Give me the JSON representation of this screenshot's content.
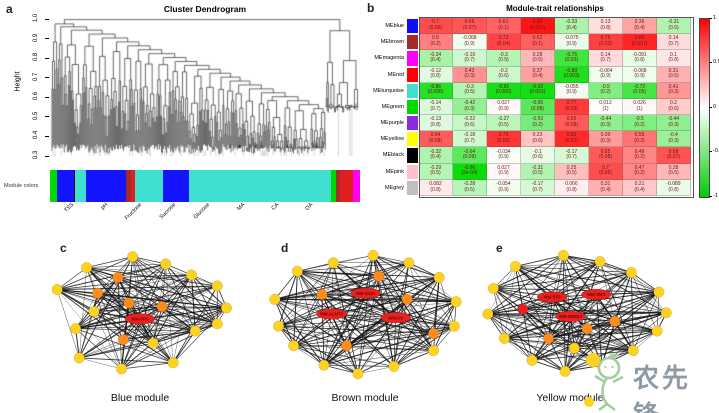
{
  "panels": {
    "a": "a",
    "b": "b",
    "c": "c",
    "d": "d",
    "e": "e"
  },
  "watermark": {
    "text": "农先锋"
  },
  "chart_data": [
    {
      "id": "cluster_dendrogram",
      "type": "dendrogram",
      "panel": "a",
      "title": "Cluster Dendrogram",
      "ylabel": "Height",
      "ylim": [
        0.3,
        1.0
      ],
      "yticks": [
        0.3,
        0.4,
        0.5,
        0.6,
        0.7,
        0.8,
        0.9,
        1.0
      ],
      "module_bar_label": "Module colors",
      "module_bar_segments": [
        {
          "color": "#00D900",
          "width": 2
        },
        {
          "color": "#1414FF",
          "width": 5
        },
        {
          "color": "#101010",
          "width": 0.5
        },
        {
          "color": "#3FE0D0",
          "width": 3
        },
        {
          "color": "#1414FF",
          "width": 12
        },
        {
          "color": "#A52A2A",
          "width": 1.5
        },
        {
          "color": "#E02020",
          "width": 1
        },
        {
          "color": "#3FE0D0",
          "width": 8.5
        },
        {
          "color": "#1414FF",
          "width": 7.5
        },
        {
          "color": "#3FE0D0",
          "width": 42
        },
        {
          "color": "#00D900",
          "width": 1.3
        },
        {
          "color": "#A52A2A",
          "width": 1.2
        },
        {
          "color": "#E02020",
          "width": 4
        },
        {
          "color": "#FF00FF",
          "width": 2
        }
      ]
    },
    {
      "id": "module_trait_heatmap",
      "type": "heatmap",
      "panel": "b",
      "title": "Module-trait relationships",
      "columns": [
        "TSS",
        "pH",
        "Fructose",
        "Sucrose",
        "Glucose",
        "MA",
        "CA",
        "OA"
      ],
      "rows": [
        {
          "module": "MEblue",
          "swatch": "#0D0DFF",
          "values": [
            "0.7",
            "0.66",
            "0.61",
            "0.92",
            "-0.33",
            "0.13",
            "0.36",
            "-0.31"
          ],
          "p_values": [
            "(0.06)",
            "(0.07)",
            "(0.1)",
            "(0.001)",
            "(0.4)",
            "(0.8)",
            "(0.4)",
            "(0.5)"
          ]
        },
        {
          "module": "MEbrown",
          "swatch": "#A52A2A",
          "values": [
            "0.5",
            "-0.068",
            "0.73",
            "0.62",
            "-0.075",
            "0.75",
            "0.85",
            "0.14"
          ],
          "p_values": [
            "(0.2)",
            "(0.9)",
            "(0.04)",
            "(0.1)",
            "(0.9)",
            "(0.03)",
            "(0.007)",
            "(0.7)"
          ]
        },
        {
          "module": "MEmagenta",
          "swatch": "#FF00FF",
          "values": [
            "-0.34",
            "-0.19",
            "-0.3",
            "0.28",
            "-0.75",
            "0.14",
            "-0.091",
            "0.1"
          ],
          "p_values": [
            "(0.4)",
            "(0.7)",
            "(0.5)",
            "(0.5)",
            "(0.03)",
            "(0.7)",
            "(0.8)",
            "(0.8)"
          ]
        },
        {
          "module": "MEred",
          "swatch": "#FF0000",
          "values": [
            "-0.12",
            "0.43",
            "-0.2",
            "0.37",
            "-0.89",
            "-0.064",
            "-0.068",
            "0.31"
          ],
          "p_values": [
            "(0.8)",
            "(0.3)",
            "(0.6)",
            "(0.4)",
            "(0.003)",
            "(0.9)",
            "(0.9)",
            "(0.5)"
          ]
        },
        {
          "module": "MEturquoise",
          "swatch": "#3FE0D0",
          "values": [
            "-0.86",
            "-0.3",
            "-0.91",
            "-0.92",
            "-0.055",
            "-0.5",
            "-0.72",
            "0.41"
          ],
          "p_values": [
            "(0.006)",
            "(0.5)",
            "(0.002)",
            "(0.001)",
            "(0.9)",
            "(0.2)",
            "(0.05)",
            "(0.3)"
          ]
        },
        {
          "module": "MEgreen",
          "swatch": "#00D900",
          "values": [
            "-0.14",
            "-0.42",
            "0.027",
            "-0.65",
            "0.77",
            "0.012",
            "0.026",
            "0.2"
          ],
          "p_values": [
            "(0.7)",
            "(0.3)",
            "(0.9)",
            "(0.08)",
            "(0.03)",
            "(1)",
            "(1)",
            "(0.6)"
          ]
        },
        {
          "module": "MEpurple",
          "swatch": "#8A2BE2",
          "values": [
            "-0.13",
            "-0.22",
            "-0.27",
            "-0.53",
            "0.65",
            "-0.44",
            "-0.5",
            "-0.44"
          ],
          "p_values": [
            "(0.8)",
            "(0.6)",
            "(0.5)",
            "(0.2)",
            "(0.08)",
            "(0.3)",
            "(0.2)",
            "(0.3)"
          ]
        },
        {
          "module": "MEyellow",
          "swatch": "#FFFF00",
          "values": [
            "0.64",
            "-0.18",
            "0.79",
            "0.23",
            "0.83",
            "0.39",
            "0.55",
            "-0.4"
          ],
          "p_values": [
            "(0.08)",
            "(0.7)",
            "(0.02)",
            "(0.6)",
            "(0.01)",
            "(0.3)",
            "(0.2)",
            "(0.3)"
          ]
        },
        {
          "module": "MEblack",
          "swatch": "#000000",
          "values": [
            "-0.32",
            "-0.64",
            "-0.034",
            "-0.1",
            "-0.17",
            "0.65",
            "0.48",
            "0.68"
          ],
          "p_values": [
            "(0.4)",
            "(0.09)",
            "(0.9)",
            "(0.6)",
            "(0.7)",
            "(0.08)",
            "(0.2)",
            "(0.07)"
          ]
        },
        {
          "module": "MEpink",
          "swatch": "#FFC0CB",
          "values": [
            "-0.29",
            "-0.96",
            "0.027",
            "-0.31",
            "0.25",
            "0.7",
            "0.47",
            "0.28"
          ],
          "p_values": [
            "(0.5)",
            "(2e-04)",
            "(0.9)",
            "(0.5)",
            "(0.5)",
            "(0.05)",
            "(0.2)",
            "(0.5)"
          ]
        },
        {
          "module": "MEgrey",
          "swatch": "#BFBFBF",
          "values": [
            "0.082",
            "-0.28",
            "-0.054",
            "-0.17",
            "0.066",
            "0.31",
            "0.21",
            "-0.089"
          ],
          "p_values": [
            "(0.8)",
            "(0.5)",
            "(0.9)",
            "(0.7)",
            "(0.8)",
            "(0.4)",
            "(0.4)",
            "(0.8)"
          ]
        }
      ],
      "colorbar": {
        "tick_labels": [
          "1",
          "0.5",
          "0",
          "-0.5",
          "-1"
        ],
        "positive_color": "#FF0000",
        "zero_color": "#FFFFFF",
        "negative_color": "#00CC00"
      }
    },
    {
      "id": "blue_module_network",
      "type": "network",
      "panel": "c",
      "caption": "Blue module",
      "node_colors": {
        "yellow": "#FFD21F",
        "orange": "#FF8C1A",
        "red": "#E8231F"
      },
      "nodes": [
        {
          "x": 0.46,
          "y": 0.03,
          "kind": "yellow"
        },
        {
          "x": 0.64,
          "y": 0.09,
          "kind": "yellow"
        },
        {
          "x": 0.21,
          "y": 0.12,
          "kind": "yellow"
        },
        {
          "x": 0.78,
          "y": 0.18,
          "kind": "yellow"
        },
        {
          "x": 0.92,
          "y": 0.27,
          "kind": "yellow"
        },
        {
          "x": 0.05,
          "y": 0.3,
          "kind": "yellow"
        },
        {
          "x": 0.97,
          "y": 0.45,
          "kind": "yellow"
        },
        {
          "x": 0.25,
          "y": 0.48,
          "kind": "yellow"
        },
        {
          "x": 0.92,
          "y": 0.58,
          "kind": "yellow"
        },
        {
          "x": 0.15,
          "y": 0.62,
          "kind": "yellow"
        },
        {
          "x": 0.8,
          "y": 0.64,
          "kind": "yellow"
        },
        {
          "x": 0.57,
          "y": 0.74,
          "kind": "yellow"
        },
        {
          "x": 0.68,
          "y": 0.9,
          "kind": "yellow"
        },
        {
          "x": 0.4,
          "y": 0.95,
          "kind": "yellow"
        },
        {
          "x": 0.17,
          "y": 0.86,
          "kind": "yellow"
        },
        {
          "x": 0.38,
          "y": 0.2,
          "kind": "orange"
        },
        {
          "x": 0.27,
          "y": 0.33,
          "kind": "orange"
        },
        {
          "x": 0.44,
          "y": 0.41,
          "kind": "orange"
        },
        {
          "x": 0.62,
          "y": 0.44,
          "kind": "orange"
        },
        {
          "x": 0.41,
          "y": 0.71,
          "kind": "orange"
        }
      ],
      "hub_labels": [
        {
          "x": 0.5,
          "y": 0.54,
          "label": "WM-SPS"
        }
      ]
    },
    {
      "id": "brown_module_network",
      "type": "network",
      "panel": "d",
      "caption": "Brown module",
      "node_colors": {
        "yellow": "#FFD21F",
        "orange": "#FF8C1A",
        "red": "#E8231F"
      },
      "nodes": [
        {
          "x": 0.54,
          "y": 0.02,
          "kind": "yellow"
        },
        {
          "x": 0.33,
          "y": 0.08,
          "kind": "yellow"
        },
        {
          "x": 0.73,
          "y": 0.08,
          "kind": "yellow"
        },
        {
          "x": 0.14,
          "y": 0.15,
          "kind": "yellow"
        },
        {
          "x": 0.89,
          "y": 0.2,
          "kind": "yellow"
        },
        {
          "x": 0.02,
          "y": 0.38,
          "kind": "yellow"
        },
        {
          "x": 0.98,
          "y": 0.4,
          "kind": "yellow"
        },
        {
          "x": 0.04,
          "y": 0.6,
          "kind": "yellow"
        },
        {
          "x": 0.97,
          "y": 0.6,
          "kind": "yellow"
        },
        {
          "x": 0.12,
          "y": 0.76,
          "kind": "yellow"
        },
        {
          "x": 0.28,
          "y": 0.92,
          "kind": "yellow"
        },
        {
          "x": 0.46,
          "y": 0.99,
          "kind": "yellow"
        },
        {
          "x": 0.65,
          "y": 0.93,
          "kind": "yellow"
        },
        {
          "x": 0.86,
          "y": 0.8,
          "kind": "yellow"
        },
        {
          "x": 0.57,
          "y": 0.19,
          "kind": "orange"
        },
        {
          "x": 0.27,
          "y": 0.34,
          "kind": "orange"
        },
        {
          "x": 0.72,
          "y": 0.38,
          "kind": "orange"
        },
        {
          "x": 0.86,
          "y": 0.66,
          "kind": "orange"
        },
        {
          "x": 0.4,
          "y": 0.76,
          "kind": "orange"
        }
      ],
      "hub_labels": [
        {
          "x": 0.5,
          "y": 0.33,
          "label": "WM-ICDH"
        },
        {
          "x": 0.32,
          "y": 0.5,
          "label": "WM-ALMT2"
        },
        {
          "x": 0.66,
          "y": 0.53,
          "label": "WM-CS"
        }
      ]
    },
    {
      "id": "yellow_module_network",
      "type": "network",
      "panel": "e",
      "caption": "Yellow module",
      "node_colors": {
        "yellow": "#FFD21F",
        "orange": "#FF8C1A",
        "red": "#E8231F"
      },
      "nodes": [
        {
          "x": 0.42,
          "y": 0.02,
          "kind": "yellow"
        },
        {
          "x": 0.62,
          "y": 0.07,
          "kind": "yellow"
        },
        {
          "x": 0.16,
          "y": 0.11,
          "kind": "yellow"
        },
        {
          "x": 0.79,
          "y": 0.16,
          "kind": "yellow"
        },
        {
          "x": 0.04,
          "y": 0.29,
          "kind": "yellow"
        },
        {
          "x": 0.94,
          "y": 0.32,
          "kind": "yellow"
        },
        {
          "x": 0.98,
          "y": 0.49,
          "kind": "yellow"
        },
        {
          "x": 0.01,
          "y": 0.5,
          "kind": "yellow"
        },
        {
          "x": 0.93,
          "y": 0.64,
          "kind": "yellow"
        },
        {
          "x": 0.1,
          "y": 0.7,
          "kind": "yellow"
        },
        {
          "x": 0.25,
          "y": 0.88,
          "kind": "yellow"
        },
        {
          "x": 0.43,
          "y": 0.97,
          "kind": "yellow"
        },
        {
          "x": 0.63,
          "y": 0.92,
          "kind": "yellow"
        },
        {
          "x": 0.8,
          "y": 0.8,
          "kind": "yellow"
        },
        {
          "x": 0.48,
          "y": 0.78,
          "kind": "yellow"
        },
        {
          "x": 0.55,
          "y": 0.62,
          "kind": "orange"
        },
        {
          "x": 0.34,
          "y": 0.7,
          "kind": "orange"
        },
        {
          "x": 0.7,
          "y": 0.56,
          "kind": "orange"
        },
        {
          "x": 0.2,
          "y": 0.46,
          "kind": "red"
        }
      ],
      "hub_labels": [
        {
          "x": 0.36,
          "y": 0.36,
          "label": "WM-STP"
        },
        {
          "x": 0.6,
          "y": 0.34,
          "label": "WM-SMO"
        },
        {
          "x": 0.46,
          "y": 0.52,
          "label": "WM-SWEET"
        }
      ]
    }
  ]
}
